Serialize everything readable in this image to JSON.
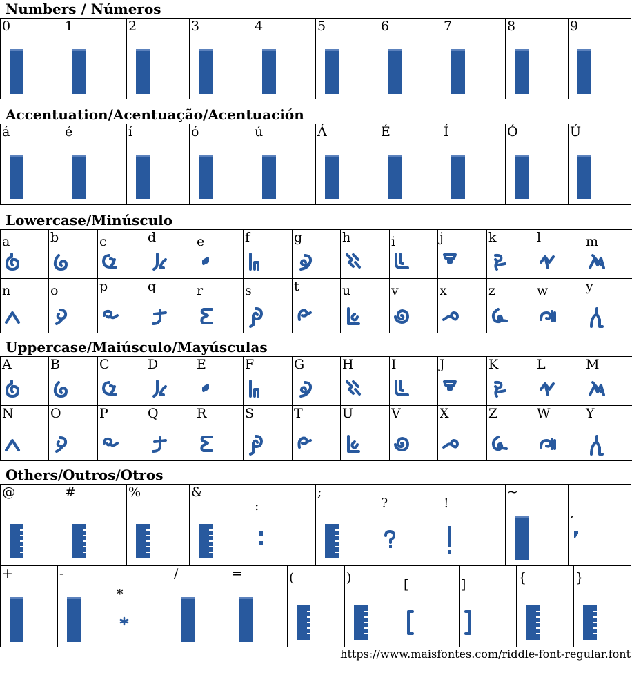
{
  "sections": [
    {
      "title": "Numbers / Números",
      "rows": [
        [
          {
            "label": "0",
            "glyph": "notdef-box"
          },
          {
            "label": "1",
            "glyph": "notdef-box"
          },
          {
            "label": "2",
            "glyph": "notdef-box"
          },
          {
            "label": "3",
            "glyph": "notdef-box"
          },
          {
            "label": "4",
            "glyph": "notdef-box"
          },
          {
            "label": "5",
            "glyph": "notdef-box"
          },
          {
            "label": "6",
            "glyph": "notdef-box"
          },
          {
            "label": "7",
            "glyph": "notdef-box"
          },
          {
            "label": "8",
            "glyph": "notdef-box"
          },
          {
            "label": "9",
            "glyph": "notdef-box"
          }
        ]
      ]
    },
    {
      "title": "Accentuation/Acentuação/Acentuación",
      "rows": [
        [
          {
            "label": "á",
            "glyph": "notdef-box"
          },
          {
            "label": "é",
            "glyph": "notdef-box"
          },
          {
            "label": "í",
            "glyph": "notdef-box"
          },
          {
            "label": "ó",
            "glyph": "notdef-box"
          },
          {
            "label": "ú",
            "glyph": "notdef-box"
          },
          {
            "label": "Á",
            "glyph": "notdef-box"
          },
          {
            "label": "É",
            "glyph": "notdef-box"
          },
          {
            "label": "Í",
            "glyph": "notdef-box"
          },
          {
            "label": "Ó",
            "glyph": "notdef-box"
          },
          {
            "label": "Ú",
            "glyph": "notdef-box"
          }
        ]
      ]
    },
    {
      "title": "Lowercase/Minúsculo",
      "rows": [
        [
          {
            "label": "a",
            "glyph": "riddle-a"
          },
          {
            "label": "b",
            "glyph": "riddle-b"
          },
          {
            "label": "c",
            "glyph": "riddle-c"
          },
          {
            "label": "d",
            "glyph": "riddle-d"
          },
          {
            "label": "e",
            "glyph": "riddle-e"
          },
          {
            "label": "f",
            "glyph": "riddle-f"
          },
          {
            "label": "g",
            "glyph": "riddle-g"
          },
          {
            "label": "h",
            "glyph": "riddle-h"
          },
          {
            "label": "i",
            "glyph": "riddle-i"
          },
          {
            "label": "j",
            "glyph": "riddle-j"
          },
          {
            "label": "k",
            "glyph": "riddle-k"
          },
          {
            "label": "l",
            "glyph": "riddle-l"
          },
          {
            "label": "m",
            "glyph": "riddle-m"
          }
        ],
        [
          {
            "label": "n",
            "glyph": "riddle-n"
          },
          {
            "label": "o",
            "glyph": "riddle-o"
          },
          {
            "label": "p",
            "glyph": "riddle-p"
          },
          {
            "label": "q",
            "glyph": "riddle-q"
          },
          {
            "label": "r",
            "glyph": "riddle-r"
          },
          {
            "label": "s",
            "glyph": "riddle-s"
          },
          {
            "label": "t",
            "glyph": "riddle-t"
          },
          {
            "label": "u",
            "glyph": "riddle-u"
          },
          {
            "label": "v",
            "glyph": "riddle-v"
          },
          {
            "label": "x",
            "glyph": "riddle-x"
          },
          {
            "label": "z",
            "glyph": "riddle-z"
          },
          {
            "label": "w",
            "glyph": "riddle-w"
          },
          {
            "label": "y",
            "glyph": "riddle-y"
          }
        ]
      ]
    },
    {
      "title": "Uppercase/Maiúsculo/Mayúsculas",
      "rows": [
        [
          {
            "label": "A",
            "glyph": "riddle-a"
          },
          {
            "label": "B",
            "glyph": "riddle-b"
          },
          {
            "label": "C",
            "glyph": "riddle-c"
          },
          {
            "label": "D",
            "glyph": "riddle-d"
          },
          {
            "label": "E",
            "glyph": "riddle-e"
          },
          {
            "label": "F",
            "glyph": "riddle-f"
          },
          {
            "label": "G",
            "glyph": "riddle-g"
          },
          {
            "label": "H",
            "glyph": "riddle-h"
          },
          {
            "label": "I",
            "glyph": "riddle-i"
          },
          {
            "label": "J",
            "glyph": "riddle-j"
          },
          {
            "label": "K",
            "glyph": "riddle-k"
          },
          {
            "label": "L",
            "glyph": "riddle-l"
          },
          {
            "label": "M",
            "glyph": "riddle-m"
          }
        ],
        [
          {
            "label": "N",
            "glyph": "riddle-n"
          },
          {
            "label": "O",
            "glyph": "riddle-o"
          },
          {
            "label": "P",
            "glyph": "riddle-p"
          },
          {
            "label": "Q",
            "glyph": "riddle-q"
          },
          {
            "label": "R",
            "glyph": "riddle-r"
          },
          {
            "label": "S",
            "glyph": "riddle-s"
          },
          {
            "label": "T",
            "glyph": "riddle-t"
          },
          {
            "label": "U",
            "glyph": "riddle-u"
          },
          {
            "label": "V",
            "glyph": "riddle-v"
          },
          {
            "label": "X",
            "glyph": "riddle-x"
          },
          {
            "label": "Z",
            "glyph": "riddle-z"
          },
          {
            "label": "W",
            "glyph": "riddle-w"
          },
          {
            "label": "Y",
            "glyph": "riddle-y"
          }
        ]
      ]
    },
    {
      "title": "Others/Outros/Otros",
      "rows": [
        [
          {
            "label": "@",
            "glyph": "notdef-ticked"
          },
          {
            "label": "#",
            "glyph": "notdef-ticked"
          },
          {
            "label": "%",
            "glyph": "notdef-ticked"
          },
          {
            "label": "&",
            "glyph": "notdef-ticked"
          },
          {
            "label": ":",
            "glyph": "colon"
          },
          {
            "label": ";",
            "glyph": "notdef-ticked"
          },
          {
            "label": "?",
            "glyph": "question"
          },
          {
            "label": "!",
            "glyph": "exclaim"
          },
          {
            "label": "~",
            "glyph": "notdef-box"
          },
          {
            "label": ",",
            "glyph": "comma"
          }
        ],
        [
          {
            "label": "+",
            "glyph": "notdef-box"
          },
          {
            "label": "-",
            "glyph": "notdef-box"
          },
          {
            "label": "*",
            "glyph": "asterisk"
          },
          {
            "label": "/",
            "glyph": "notdef-box"
          },
          {
            "label": "=",
            "glyph": "notdef-box"
          },
          {
            "label": "(",
            "glyph": "notdef-ticked"
          },
          {
            "label": ")",
            "glyph": "notdef-ticked"
          },
          {
            "label": "[",
            "glyph": "bracket-left"
          },
          {
            "label": "]",
            "glyph": "bracket-right"
          },
          {
            "label": "{",
            "glyph": "notdef-ticked"
          },
          {
            "label": "}",
            "glyph": "notdef-ticked"
          }
        ]
      ]
    }
  ],
  "footer": {
    "url": "https://www.maisfontes.com/riddle-font-regular.font"
  },
  "colors": {
    "glyph": "#28599e",
    "grid": "#000000",
    "background": "#ffffff"
  }
}
